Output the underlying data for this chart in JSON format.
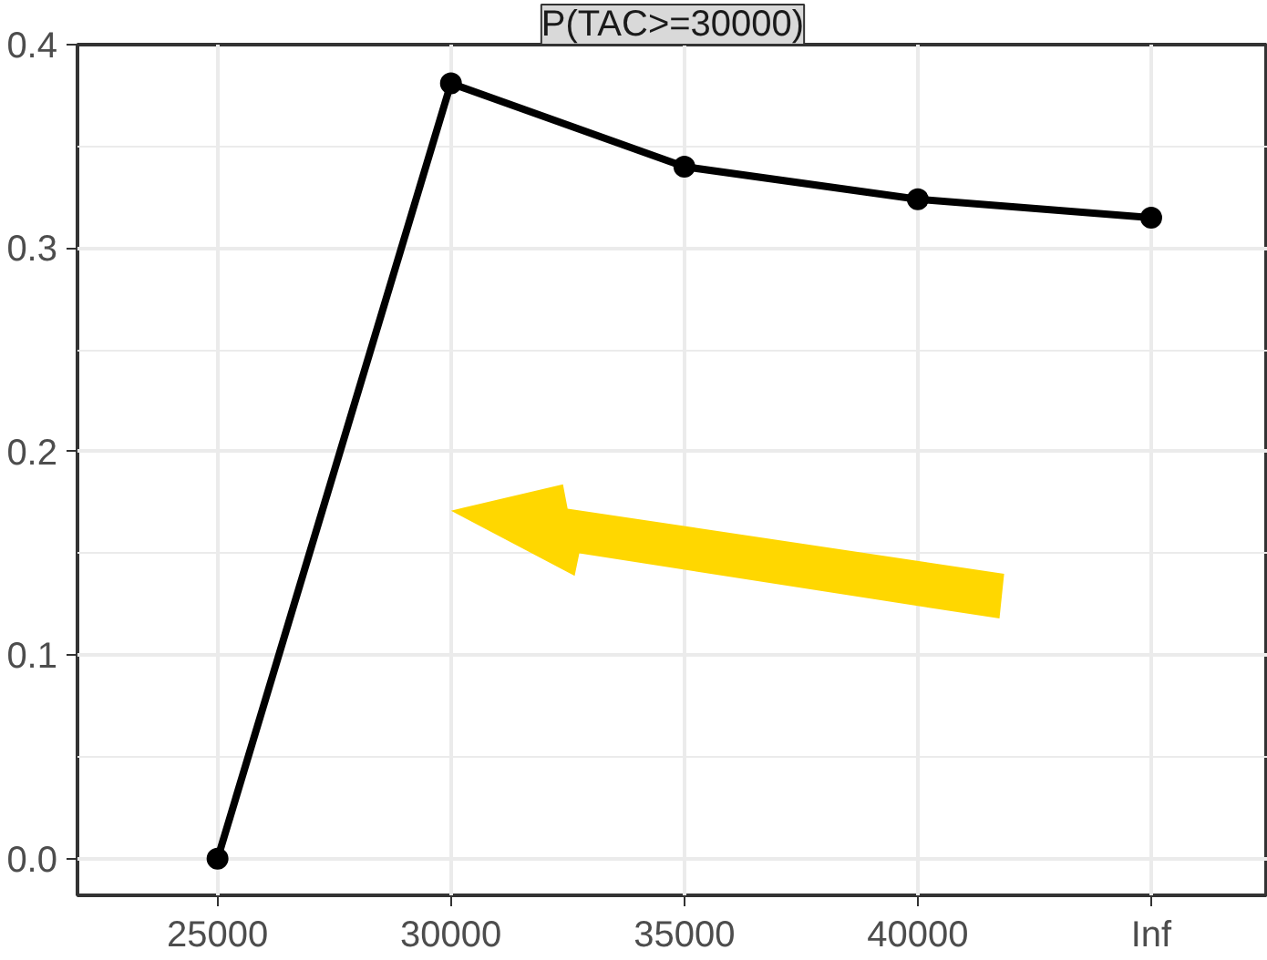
{
  "chart_data": {
    "type": "line",
    "title": "P(TAC>=30000)",
    "categories": [
      "25000",
      "30000",
      "35000",
      "40000",
      "Inf"
    ],
    "series": [
      {
        "color": "#000000",
        "values": [
          0.0,
          0.381,
          0.34,
          0.324,
          0.315
        ]
      }
    ],
    "ylim": [
      -0.018,
      0.4
    ],
    "yticks": [
      {
        "value": 0.0,
        "label": "0.0"
      },
      {
        "value": 0.1,
        "label": "0.1"
      },
      {
        "value": 0.2,
        "label": "0.2"
      },
      {
        "value": 0.3,
        "label": "0.3"
      },
      {
        "value": 0.4,
        "label": "0.4"
      }
    ],
    "grid": true,
    "marker": "circle",
    "line_style": "solid"
  }
}
